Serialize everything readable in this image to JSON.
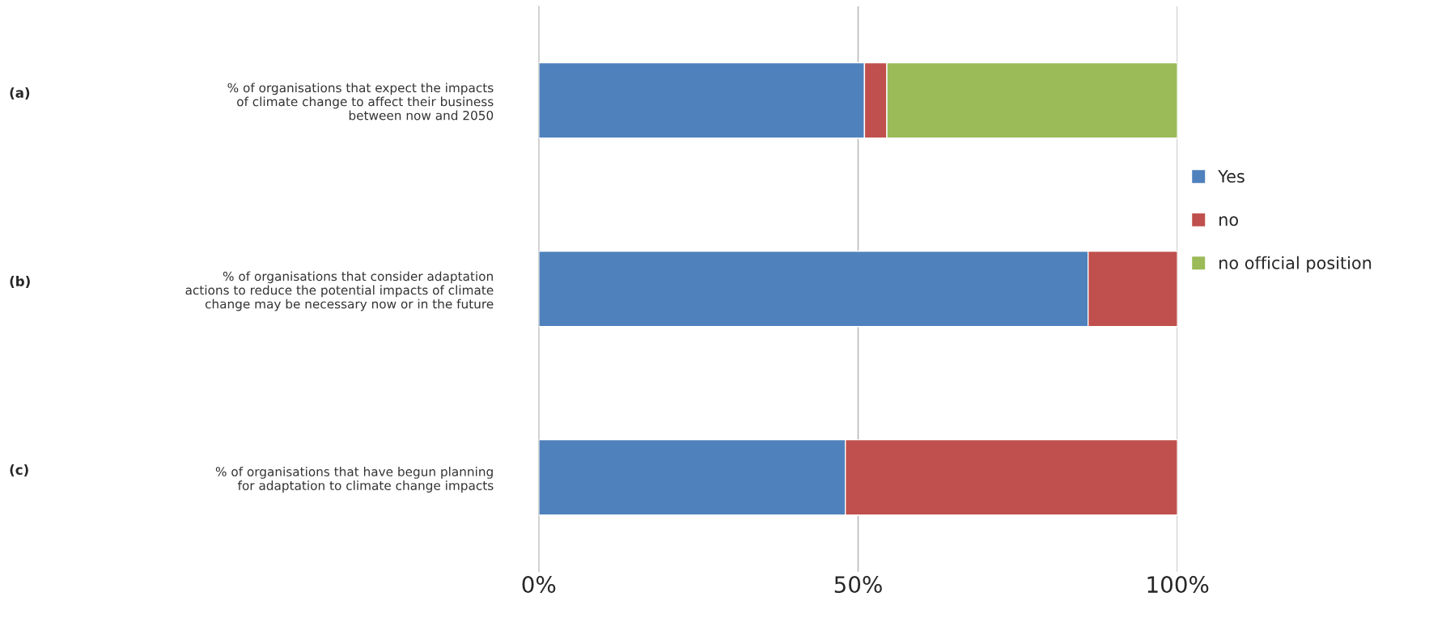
{
  "chart_data": {
    "type": "bar",
    "orientation": "horizontal",
    "stacked": true,
    "categories": [
      "% of organisations that expect the impacts\nof climate change to affect their business\nbetween now and 2050",
      "% of organisations that consider adaptation\nactions to reduce the potential impacts of climate\nchange may be necessary now or in the future",
      "% of organisations that have begun planning\nfor adaptation to climate change impacts"
    ],
    "series": [
      {
        "name": "Yes",
        "color": "#4f81bd",
        "values": [
          51,
          86,
          48
        ]
      },
      {
        "name": "no",
        "color": "#c0504d",
        "values": [
          3.5,
          14,
          52
        ]
      },
      {
        "name": "no official position",
        "color": "#9bbb59",
        "values": [
          45.5,
          null,
          null
        ]
      }
    ],
    "xlim": [
      0,
      100
    ],
    "xticks": [
      {
        "value": 0,
        "label": "0%"
      },
      {
        "value": 50,
        "label": "50%"
      },
      {
        "value": 100,
        "label": "100%"
      }
    ],
    "grid": "x",
    "legend": "right",
    "annotations": [
      "(a)",
      "(b)",
      "(c)"
    ]
  }
}
